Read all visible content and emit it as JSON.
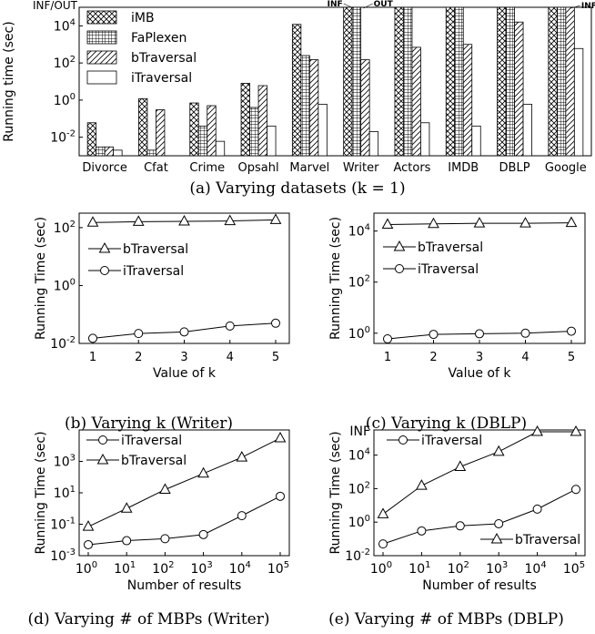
{
  "chart_data": [
    {
      "id": "a",
      "type": "bar",
      "caption": "(a) Varying datasets (k = 1)",
      "ylabel": "Running time (sec)",
      "y_scale": "log",
      "ylim_exp": [
        -3,
        5
      ],
      "ytick_exps": [
        -2,
        0,
        2,
        4
      ],
      "top_label": "INF/OUT",
      "categories": [
        "Divorce",
        "Cfat",
        "Crime",
        "Opsahl",
        "Marvel",
        "Writer",
        "Actors",
        "IMDB",
        "DBLP",
        "Google"
      ],
      "series": [
        {
          "name": "iMB",
          "pattern": "crosshatch",
          "values": [
            0.06,
            1.2,
            0.7,
            8,
            12000,
            "INF",
            "OUT",
            "OUT",
            "OUT",
            "OUT"
          ]
        },
        {
          "name": "FaPlexen",
          "pattern": "grid",
          "values": [
            0.003,
            0.002,
            0.04,
            0.4,
            250,
            "INF",
            "OUT",
            "OUT",
            "OUT",
            "OUT"
          ]
        },
        {
          "name": "bTraversal",
          "pattern": "diagonal",
          "values": [
            0.003,
            0.3,
            0.5,
            6,
            150,
            150,
            700,
            1000,
            16000,
            "INF"
          ]
        },
        {
          "name": "iTraversal",
          "pattern": "blank",
          "values": [
            0.002,
            0.001,
            0.006,
            0.04,
            0.6,
            0.02,
            0.06,
            0.04,
            0.6,
            600
          ]
        }
      ],
      "annotations": [
        {
          "text": "INF",
          "category": "Writer"
        },
        {
          "text": "OUT",
          "category": "Writer"
        },
        {
          "text": "INF",
          "category": "Google"
        }
      ]
    },
    {
      "id": "b",
      "type": "line",
      "caption": "(b) Varying k (Writer)",
      "xlabel": "Value of k",
      "ylabel": "Running Time (sec)",
      "y_scale": "log",
      "ylim_exp": [
        -2,
        2.5
      ],
      "ytick_exps": [
        -2,
        0,
        2
      ],
      "x": [
        1,
        2,
        3,
        4,
        5
      ],
      "xticks": [
        "1",
        "2",
        "3",
        "4",
        "5"
      ],
      "series": [
        {
          "name": "bTraversal",
          "marker": "triangle",
          "values": [
            150,
            160,
            165,
            170,
            185
          ]
        },
        {
          "name": "iTraversal",
          "marker": "circle",
          "values": [
            0.015,
            0.022,
            0.025,
            0.04,
            0.05
          ]
        }
      ],
      "legend": "upper-left"
    },
    {
      "id": "c",
      "type": "line",
      "caption": "(c) Varying k (DBLP)",
      "xlabel": "Value of k",
      "ylabel": "Running Time (sec)",
      "y_scale": "log",
      "ylim_exp": [
        -0.4,
        4.7
      ],
      "ytick_exps": [
        0,
        2,
        4
      ],
      "x": [
        1,
        2,
        3,
        4,
        5
      ],
      "xticks": [
        "1",
        "2",
        "3",
        "4",
        "5"
      ],
      "series": [
        {
          "name": "bTraversal",
          "marker": "triangle",
          "values": [
            18000,
            19000,
            20000,
            20000,
            21000
          ]
        },
        {
          "name": "iTraversal",
          "marker": "circle",
          "values": [
            0.6,
            0.9,
            0.95,
            1.0,
            1.2
          ]
        }
      ],
      "legend": "upper-left"
    },
    {
      "id": "d",
      "type": "line",
      "caption": "(d) Varying # of MBPs (Writer)",
      "xlabel": "Number of results",
      "ylabel": "Running Time (sec)",
      "y_scale": "log",
      "x_scale": "log",
      "ylim_exp": [
        -3,
        5
      ],
      "ytick_exps": [
        -3,
        -1,
        1,
        3
      ],
      "x": [
        1,
        10,
        100,
        1000,
        10000,
        100000
      ],
      "xticks": [
        "10^0",
        "10^1",
        "10^2",
        "10^3",
        "10^4",
        "10^5"
      ],
      "series": [
        {
          "name": "iTraversal",
          "marker": "circle",
          "values": [
            0.005,
            0.009,
            0.012,
            0.022,
            0.35,
            6
          ]
        },
        {
          "name": "bTraversal",
          "marker": "triangle",
          "values": [
            0.07,
            1.0,
            16,
            170,
            1800,
            30000
          ]
        }
      ],
      "legend": "upper-left"
    },
    {
      "id": "e",
      "type": "line",
      "caption": "(e) Varying # of MBPs (DBLP)",
      "xlabel": "Number of results",
      "ylabel": "Running Time (sec)",
      "y_scale": "log",
      "x_scale": "log",
      "ylim_exp": [
        -2,
        5.5
      ],
      "ytick_exps": [
        -2,
        0,
        2,
        4
      ],
      "top_label": "INF",
      "x": [
        1,
        10,
        100,
        1000,
        10000,
        100000
      ],
      "xticks": [
        "10^0",
        "10^1",
        "10^2",
        "10^3",
        "10^4",
        "10^5"
      ],
      "series": [
        {
          "name": "iTraversal",
          "marker": "circle",
          "values": [
            0.05,
            0.3,
            0.6,
            0.8,
            6,
            90
          ]
        },
        {
          "name": "bTraversal",
          "marker": "triangle",
          "values": [
            3,
            150,
            2000,
            16000,
            "INF",
            "INF"
          ]
        }
      ],
      "legend": "iTraversal upper-left, bTraversal lower-right"
    }
  ]
}
